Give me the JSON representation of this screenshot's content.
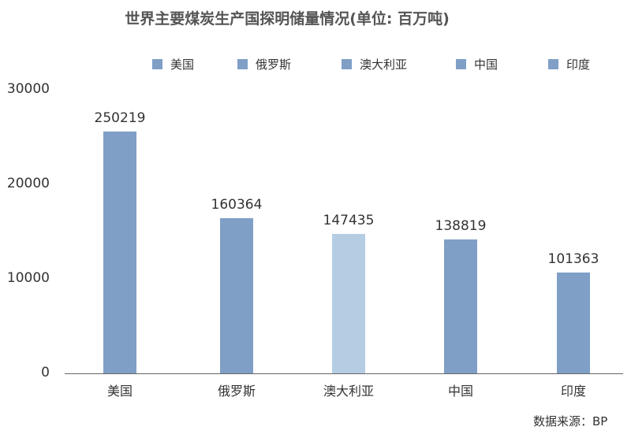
{
  "chart_data": {
    "type": "bar",
    "title": "世界主要煤炭生产国探明储量情况(单位: 百万吨)",
    "categories": [
      "美国",
      "俄罗斯",
      "澳大利亚",
      "中国",
      "印度"
    ],
    "values": [
      250219,
      160364,
      147435,
      138819,
      101363
    ],
    "value_labels": [
      "250219",
      "160364",
      "147435",
      "138819",
      "101363"
    ],
    "axis_values": [
      250219,
      160364,
      147435,
      138819,
      101363
    ],
    "bar_colors": [
      "#7f9fc6",
      "#7f9fc6",
      "#b4cde2",
      "#7f9fc6",
      "#7f9fc6"
    ],
    "legend": [
      "美国",
      "俄罗斯",
      "澳大利亚",
      "中国",
      "印度"
    ],
    "legend_placement": "top",
    "ylim": [
      0,
      30000
    ],
    "yticks": [
      0,
      10000,
      20000,
      30000
    ],
    "ytick_labels": [
      "0",
      "10000",
      "20000",
      "30000"
    ],
    "xlabel": "",
    "ylabel": "",
    "grid": false,
    "source": "数据来源：BP",
    "colors": {
      "bar": "#7f9fc6",
      "bar_highlight": "#b4cde2",
      "legend_swatch": "#7f9fc6",
      "axis": "#666666",
      "text": "#333333",
      "title": "#555555"
    }
  }
}
